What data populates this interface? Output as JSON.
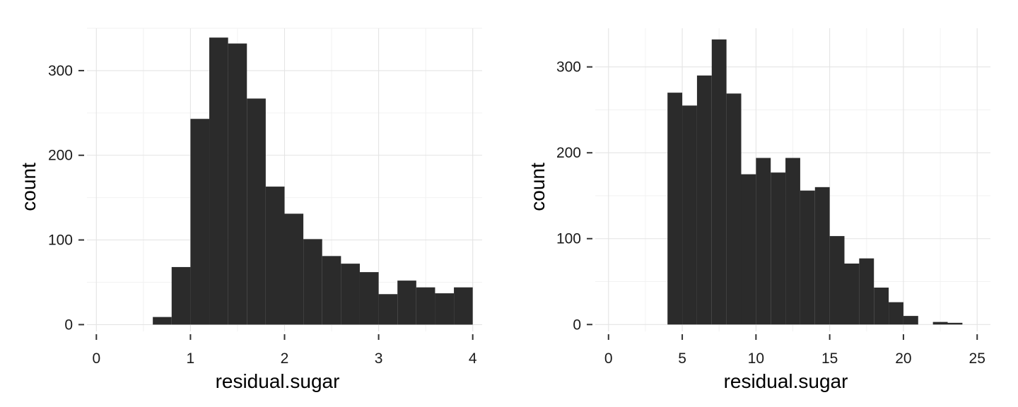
{
  "chart_data": [
    {
      "type": "bar",
      "subtype": "histogram",
      "xlabel": "residual.sugar",
      "ylabel": "count",
      "xlim": [
        -0.1,
        4.1
      ],
      "ylim": [
        -8,
        350
      ],
      "xticks": [
        0,
        1,
        2,
        3,
        4
      ],
      "yticks": [
        0,
        100,
        200,
        300
      ],
      "grid": true,
      "bar_color": "#2b2b2b",
      "bins": [
        {
          "x0": 0.6,
          "x1": 0.8,
          "count": 9
        },
        {
          "x0": 0.8,
          "x1": 1.0,
          "count": 68
        },
        {
          "x0": 1.0,
          "x1": 1.2,
          "count": 243
        },
        {
          "x0": 1.2,
          "x1": 1.4,
          "count": 339
        },
        {
          "x0": 1.4,
          "x1": 1.6,
          "count": 332
        },
        {
          "x0": 1.6,
          "x1": 1.8,
          "count": 267
        },
        {
          "x0": 1.8,
          "x1": 2.0,
          "count": 163
        },
        {
          "x0": 2.0,
          "x1": 2.2,
          "count": 131
        },
        {
          "x0": 2.2,
          "x1": 2.4,
          "count": 101
        },
        {
          "x0": 2.4,
          "x1": 2.6,
          "count": 81
        },
        {
          "x0": 2.6,
          "x1": 2.8,
          "count": 72
        },
        {
          "x0": 2.8,
          "x1": 3.0,
          "count": 62
        },
        {
          "x0": 3.0,
          "x1": 3.2,
          "count": 36
        },
        {
          "x0": 3.2,
          "x1": 3.4,
          "count": 52
        },
        {
          "x0": 3.4,
          "x1": 3.6,
          "count": 44
        },
        {
          "x0": 3.6,
          "x1": 3.8,
          "count": 37
        },
        {
          "x0": 3.8,
          "x1": 4.0,
          "count": 44
        }
      ]
    },
    {
      "type": "bar",
      "subtype": "histogram",
      "xlabel": "residual.sugar",
      "ylabel": "count",
      "xlim": [
        -0.9,
        25.9
      ],
      "ylim": [
        -8,
        345
      ],
      "xticks": [
        0,
        5,
        10,
        15,
        20,
        25
      ],
      "yticks": [
        0,
        100,
        200,
        300
      ],
      "grid": true,
      "bar_color": "#2b2b2b",
      "bins": [
        {
          "x0": 4,
          "x1": 5,
          "count": 270
        },
        {
          "x0": 5,
          "x1": 6,
          "count": 255
        },
        {
          "x0": 6,
          "x1": 7,
          "count": 290
        },
        {
          "x0": 7,
          "x1": 8,
          "count": 332
        },
        {
          "x0": 8,
          "x1": 9,
          "count": 269
        },
        {
          "x0": 9,
          "x1": 10,
          "count": 175
        },
        {
          "x0": 10,
          "x1": 11,
          "count": 194
        },
        {
          "x0": 11,
          "x1": 12,
          "count": 177
        },
        {
          "x0": 12,
          "x1": 13,
          "count": 194
        },
        {
          "x0": 13,
          "x1": 14,
          "count": 156
        },
        {
          "x0": 14,
          "x1": 15,
          "count": 160
        },
        {
          "x0": 15,
          "x1": 16,
          "count": 103
        },
        {
          "x0": 16,
          "x1": 17,
          "count": 71
        },
        {
          "x0": 17,
          "x1": 18,
          "count": 77
        },
        {
          "x0": 18,
          "x1": 19,
          "count": 43
        },
        {
          "x0": 19,
          "x1": 20,
          "count": 26
        },
        {
          "x0": 20,
          "x1": 21,
          "count": 10
        },
        {
          "x0": 21,
          "x1": 22,
          "count": 0
        },
        {
          "x0": 22,
          "x1": 23,
          "count": 3
        },
        {
          "x0": 23,
          "x1": 24,
          "count": 2
        }
      ]
    }
  ]
}
